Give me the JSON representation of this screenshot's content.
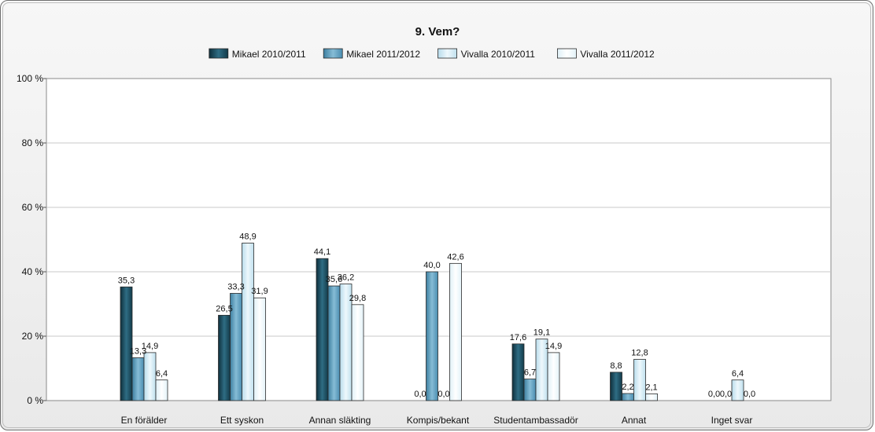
{
  "chart_data": {
    "type": "bar",
    "title": "9. Vem?",
    "categories": [
      "En förälder",
      "Ett syskon",
      "Annan släkting",
      "Kompis/bekant",
      "Studentambassadör",
      "Annat",
      "Inget svar"
    ],
    "series": [
      {
        "name": "Mikael 2010/2011",
        "values": [
          35.3,
          26.5,
          44.1,
          0.0,
          17.6,
          8.8,
          0.0
        ],
        "labels": [
          "35,3",
          "26,5",
          "44,1",
          "0,0",
          "17,6",
          "8,8",
          "0,0"
        ],
        "color": "#1f4e5f"
      },
      {
        "name": "Mikael 2011/2012",
        "values": [
          13.3,
          33.3,
          35.6,
          40.0,
          6.7,
          2.2,
          0.0
        ],
        "labels": [
          "13,3",
          "33,3",
          "35,6",
          "40,0",
          "6,7",
          "2,2",
          "0,0"
        ],
        "color": "#4f93b5"
      },
      {
        "name": "Vivalla 2010/2011",
        "values": [
          14.9,
          48.9,
          36.2,
          0.0,
          19.1,
          12.8,
          6.4
        ],
        "labels": [
          "14,9",
          "48,9",
          "36,2",
          "0,0",
          "19,1",
          "12,8",
          "6,4"
        ],
        "color": "#cfe8f3"
      },
      {
        "name": "Vivalla 2011/2012",
        "values": [
          6.4,
          31.9,
          29.8,
          42.6,
          14.9,
          2.1,
          0.0
        ],
        "labels": [
          "6,4",
          "31,9",
          "29,8",
          "42,6",
          "14,9",
          "2,1",
          "0,0"
        ],
        "color": "#eef7fb"
      }
    ],
    "ylim": [
      0,
      100
    ],
    "yticks": [
      0,
      20,
      40,
      60,
      80,
      100
    ],
    "ytick_labels": [
      "0 %",
      "20 %",
      "40 %",
      "60 %",
      "80 %",
      "100 %"
    ],
    "xlabel": "",
    "ylabel": "",
    "grid": true,
    "legend_position": "top-center"
  }
}
